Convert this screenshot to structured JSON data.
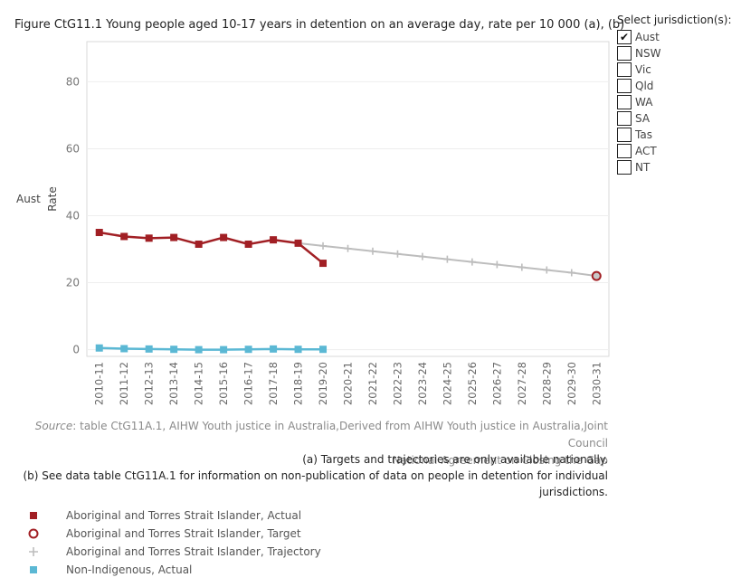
{
  "title": "Figure CtG11.1 Young people aged 10-17 years in detention on an average day, rate per 10 000 (a), (b)",
  "jurisdiction_filter": {
    "title": "Select jurisdiction(s):",
    "options": [
      {
        "label": "Aust",
        "checked": true
      },
      {
        "label": "NSW",
        "checked": false
      },
      {
        "label": "Vic",
        "checked": false
      },
      {
        "label": "Qld",
        "checked": false
      },
      {
        "label": "WA",
        "checked": false
      },
      {
        "label": "SA",
        "checked": false
      },
      {
        "label": "Tas",
        "checked": false
      },
      {
        "label": "ACT",
        "checked": false
      },
      {
        "label": "NT",
        "checked": false
      }
    ]
  },
  "chart_data": {
    "type": "line",
    "row_label": "Aust",
    "ylabel": "Rate",
    "xlabel": "",
    "ylim": [
      -2,
      92
    ],
    "yticks": [
      0,
      20,
      40,
      60,
      80
    ],
    "grid": true,
    "categories": [
      "2010-11",
      "2011-12",
      "2012-13",
      "2013-14",
      "2014-15",
      "2015-16",
      "2016-17",
      "2017-18",
      "2018-19",
      "2019-20",
      "2020-21",
      "2021-22",
      "2022-23",
      "2023-24",
      "2024-25",
      "2025-26",
      "2026-27",
      "2027-28",
      "2028-29",
      "2029-30",
      "2030-31"
    ],
    "series": [
      {
        "name": "Aboriginal and Torres Strait Islander, Actual",
        "color": "#a11f24",
        "marker": "square",
        "values": [
          35.0,
          33.8,
          33.3,
          33.5,
          31.5,
          33.5,
          31.5,
          32.8,
          31.8,
          25.8,
          null,
          null,
          null,
          null,
          null,
          null,
          null,
          null,
          null,
          null,
          null
        ]
      },
      {
        "name": "Aboriginal and Torres Strait Islander, Target",
        "color": "#a11f24",
        "marker": "circle",
        "values": [
          null,
          null,
          null,
          null,
          null,
          null,
          null,
          null,
          null,
          null,
          null,
          null,
          null,
          null,
          null,
          null,
          null,
          null,
          null,
          null,
          22.0
        ]
      },
      {
        "name": "Aboriginal and Torres Strait Islander, Trajectory",
        "color": "#bdbdbd",
        "marker": "plus",
        "values": [
          null,
          null,
          null,
          null,
          null,
          null,
          null,
          null,
          31.8,
          31.0,
          30.2,
          29.4,
          28.6,
          27.8,
          27.0,
          26.2,
          25.4,
          24.6,
          23.8,
          23.0,
          22.0
        ]
      },
      {
        "name": "Non-Indigenous, Actual",
        "color": "#5bb8d4",
        "marker": "square",
        "values": [
          0.5,
          0.3,
          0.2,
          0.1,
          0.0,
          0.0,
          0.1,
          0.2,
          0.1,
          0.1,
          null,
          null,
          null,
          null,
          null,
          null,
          null,
          null,
          null,
          null,
          null
        ]
      }
    ]
  },
  "source": {
    "label": "Source",
    "text": ": table CtG11A.1, AIHW Youth justice in Australia,Derived from AIHW Youth justice in Australia,Joint Council",
    "text2": "National Agreement on Closing the Gap"
  },
  "notes": {
    "a": "(a) Targets and trajectories are only available nationally.",
    "b1": "(b) See data table CtG11A.1 for information on non-publication of data on people in detention for individual",
    "b2": "jurisdictions."
  }
}
